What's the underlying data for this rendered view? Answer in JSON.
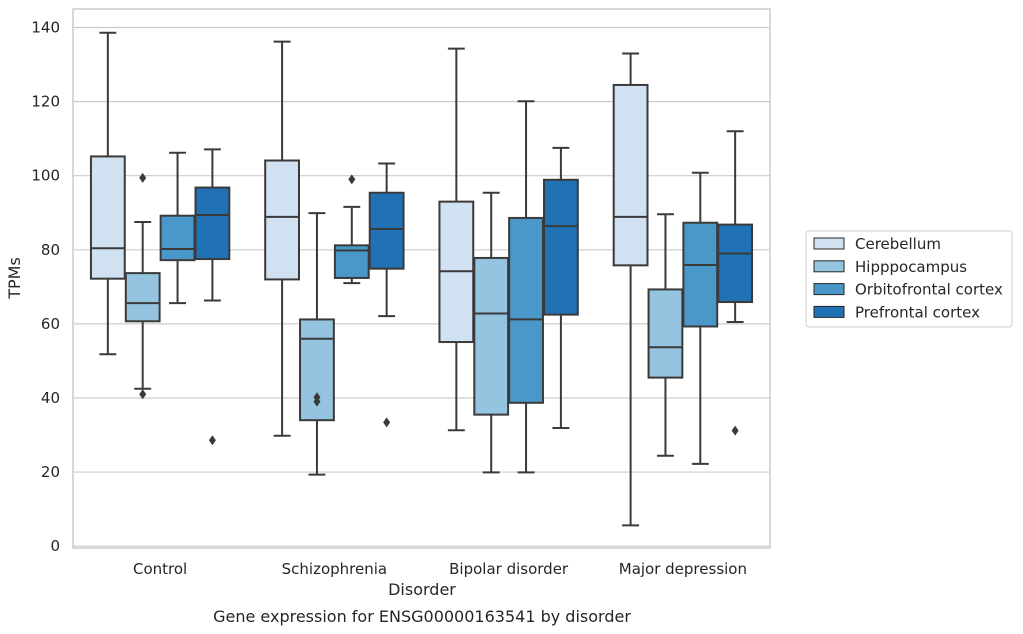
{
  "chart_data": {
    "type": "box",
    "title": "",
    "caption": "Gene expression for ENSG00000163541 by disorder",
    "xlabel": "Disorder",
    "ylabel": "TPMs",
    "ylim": [
      -0.5,
      145
    ],
    "yticks": [
      "0",
      "20",
      "40",
      "60",
      "80",
      "100",
      "120",
      "140"
    ],
    "grid": "horizontal",
    "legend_position": "right",
    "categories": [
      "Control",
      "Schizophrenia",
      "Bipolar disorder",
      "Major depression"
    ],
    "series": [
      {
        "name": "Cerebellum",
        "color": "#d0e1f2",
        "boxes": [
          {
            "whislo": 51.8,
            "q1": 72.2,
            "med": 80.4,
            "q3": 105.2,
            "whishi": 138.6,
            "fliers": []
          },
          {
            "whislo": 29.8,
            "q1": 72.0,
            "med": 88.9,
            "q3": 104.1,
            "whishi": 136.2,
            "fliers": []
          },
          {
            "whislo": 31.3,
            "q1": 55.1,
            "med": 74.2,
            "q3": 93.0,
            "whishi": 134.3,
            "fliers": []
          },
          {
            "whislo": 5.6,
            "q1": 75.8,
            "med": 88.9,
            "q3": 124.5,
            "whishi": 133.0,
            "fliers": []
          }
        ]
      },
      {
        "name": "Hipppocampus",
        "color": "#94c4df",
        "boxes": [
          {
            "whislo": 42.5,
            "q1": 60.7,
            "med": 65.6,
            "q3": 73.7,
            "whishi": 87.5,
            "fliers": [
              99.4,
              41.0
            ]
          },
          {
            "whislo": 19.3,
            "q1": 34.0,
            "med": 56.0,
            "q3": 61.2,
            "whishi": 89.9,
            "fliers": [
              40.2,
              39.0
            ]
          },
          {
            "whislo": 19.9,
            "q1": 35.5,
            "med": 62.8,
            "q3": 77.8,
            "whishi": 95.4,
            "fliers": []
          },
          {
            "whislo": 24.4,
            "q1": 45.5,
            "med": 53.7,
            "q3": 69.3,
            "whishi": 89.6,
            "fliers": []
          }
        ]
      },
      {
        "name": "Orbitofrontal cortex",
        "color": "#4a98c9",
        "boxes": [
          {
            "whislo": 65.6,
            "q1": 77.2,
            "med": 80.2,
            "q3": 89.2,
            "whishi": 106.2,
            "fliers": []
          },
          {
            "whislo": 71.0,
            "q1": 72.4,
            "med": 79.8,
            "q3": 81.2,
            "whishi": 91.6,
            "fliers": [
              99.0
            ]
          },
          {
            "whislo": 19.9,
            "q1": 38.7,
            "med": 61.2,
            "q3": 88.6,
            "whishi": 120.1,
            "fliers": []
          },
          {
            "whislo": 22.2,
            "q1": 59.3,
            "med": 75.9,
            "q3": 87.3,
            "whishi": 100.8,
            "fliers": []
          }
        ]
      },
      {
        "name": "Prefrontal cortex",
        "color": "#2171b5",
        "boxes": [
          {
            "whislo": 66.3,
            "q1": 77.5,
            "med": 89.4,
            "q3": 96.8,
            "whishi": 107.1,
            "fliers": [
              28.6
            ]
          },
          {
            "whislo": 62.1,
            "q1": 74.9,
            "med": 85.6,
            "q3": 95.4,
            "whishi": 103.3,
            "fliers": [
              33.4
            ]
          },
          {
            "whislo": 31.9,
            "q1": 62.5,
            "med": 86.4,
            "q3": 98.9,
            "whishi": 107.5,
            "fliers": []
          },
          {
            "whislo": 60.5,
            "q1": 65.9,
            "med": 79.0,
            "q3": 86.8,
            "whishi": 112.0,
            "fliers": [
              31.2
            ]
          }
        ]
      }
    ]
  }
}
